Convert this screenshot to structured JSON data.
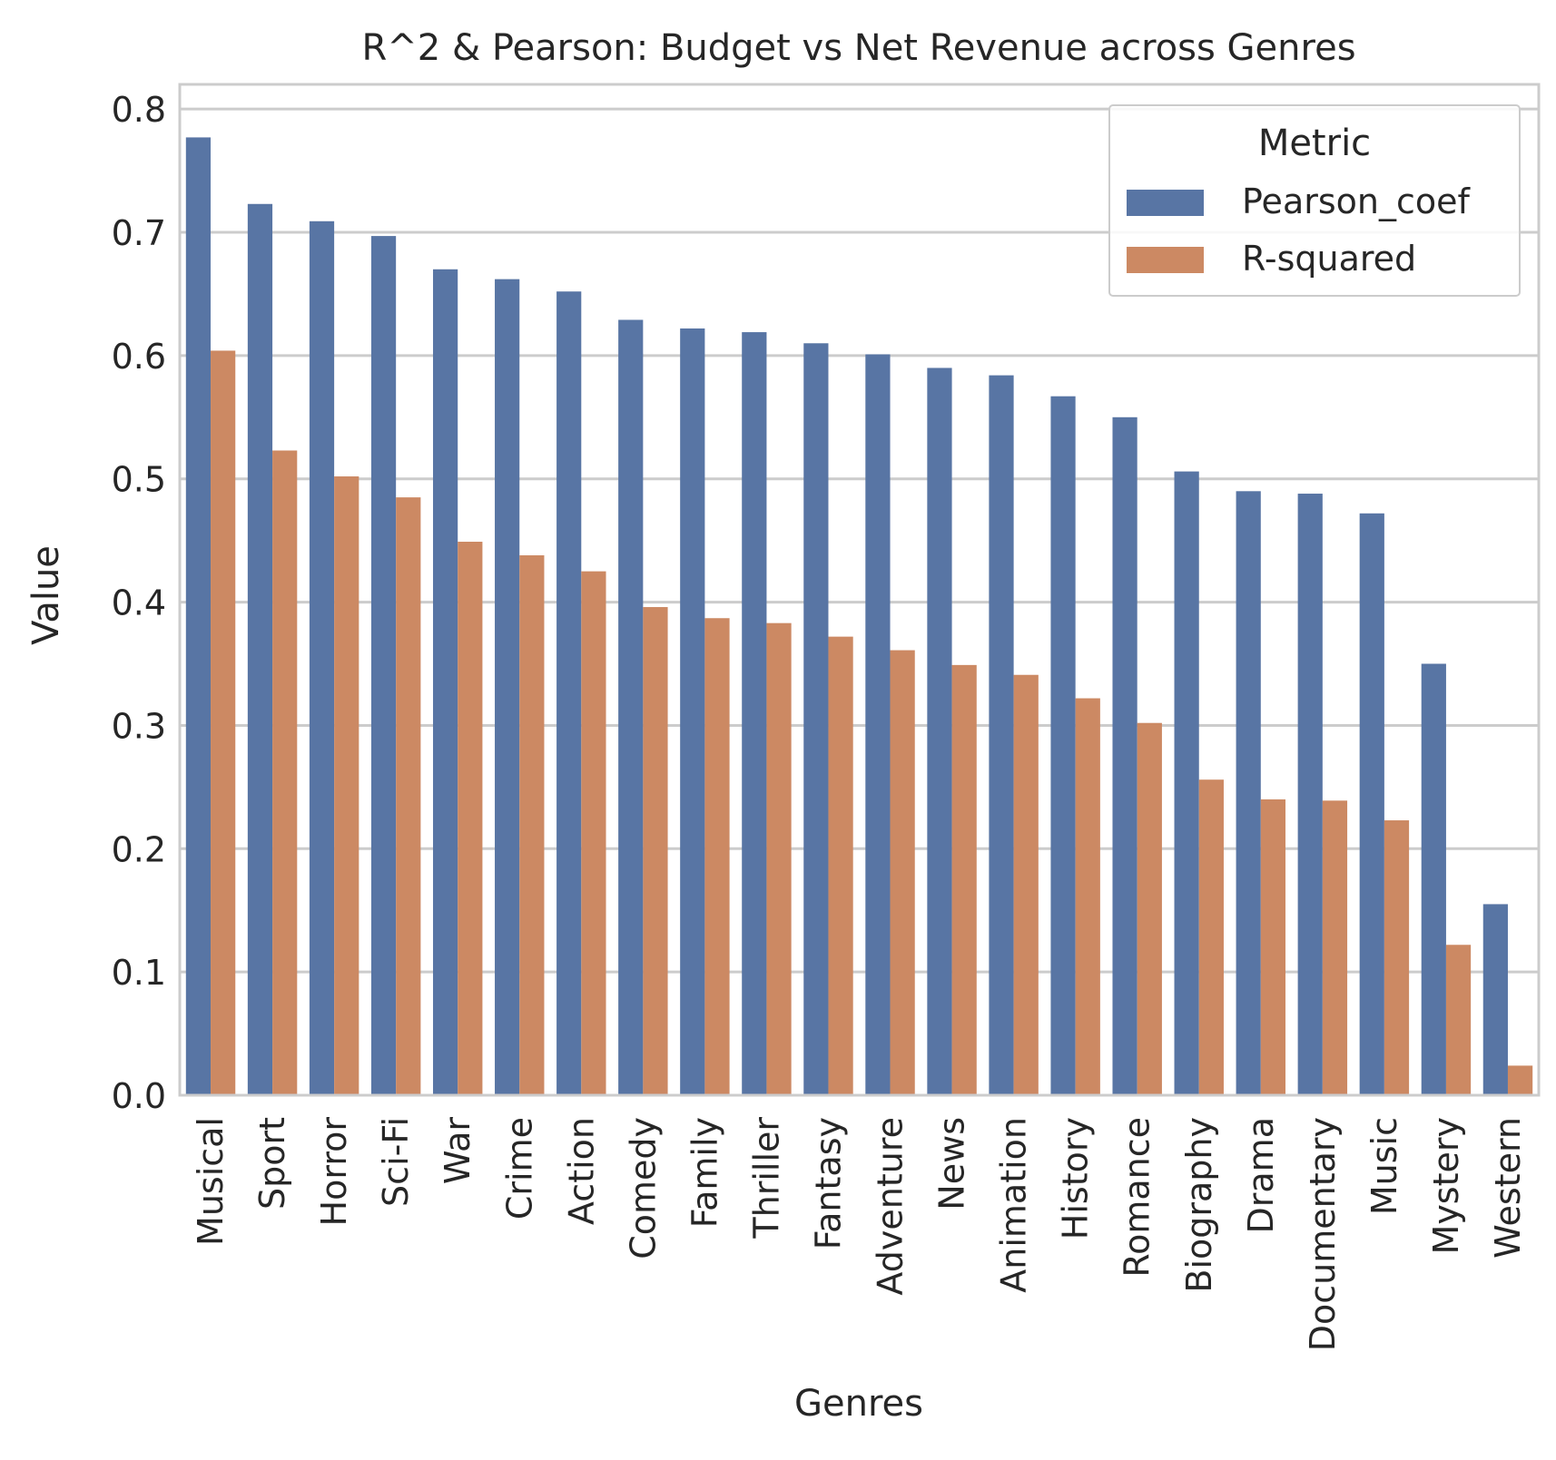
{
  "chart_data": {
    "type": "bar",
    "title": "R^2 & Pearson: Budget vs Net Revenue across Genres",
    "xlabel": "Genres",
    "ylabel": "Value",
    "ylim": [
      0,
      0.82
    ],
    "yticks": [
      "0.0",
      "0.1",
      "0.2",
      "0.3",
      "0.4",
      "0.5",
      "0.6",
      "0.7",
      "0.8"
    ],
    "grid": "horizontal",
    "legend": {
      "title": "Metric",
      "position": "top-right"
    },
    "categories": [
      "Musical",
      "Sport",
      "Horror",
      "Sci-Fi",
      "War",
      "Crime",
      "Action",
      "Comedy",
      "Family",
      "Thriller",
      "Fantasy",
      "Adventure",
      "News",
      "Animation",
      "History",
      "Romance",
      "Biography",
      "Drama",
      "Documentary",
      "Music",
      "Mystery",
      "Western"
    ],
    "series": [
      {
        "name": "Pearson_coef",
        "color": "#5875a4",
        "values": [
          0.777,
          0.723,
          0.709,
          0.697,
          0.67,
          0.662,
          0.652,
          0.629,
          0.622,
          0.619,
          0.61,
          0.601,
          0.59,
          0.584,
          0.567,
          0.55,
          0.506,
          0.49,
          0.488,
          0.472,
          0.35,
          0.155
        ]
      },
      {
        "name": "R-squared",
        "color": "#cc8963",
        "values": [
          0.604,
          0.523,
          0.502,
          0.485,
          0.449,
          0.438,
          0.425,
          0.396,
          0.387,
          0.383,
          0.372,
          0.361,
          0.349,
          0.341,
          0.322,
          0.302,
          0.256,
          0.24,
          0.239,
          0.223,
          0.122,
          0.024
        ]
      }
    ]
  }
}
